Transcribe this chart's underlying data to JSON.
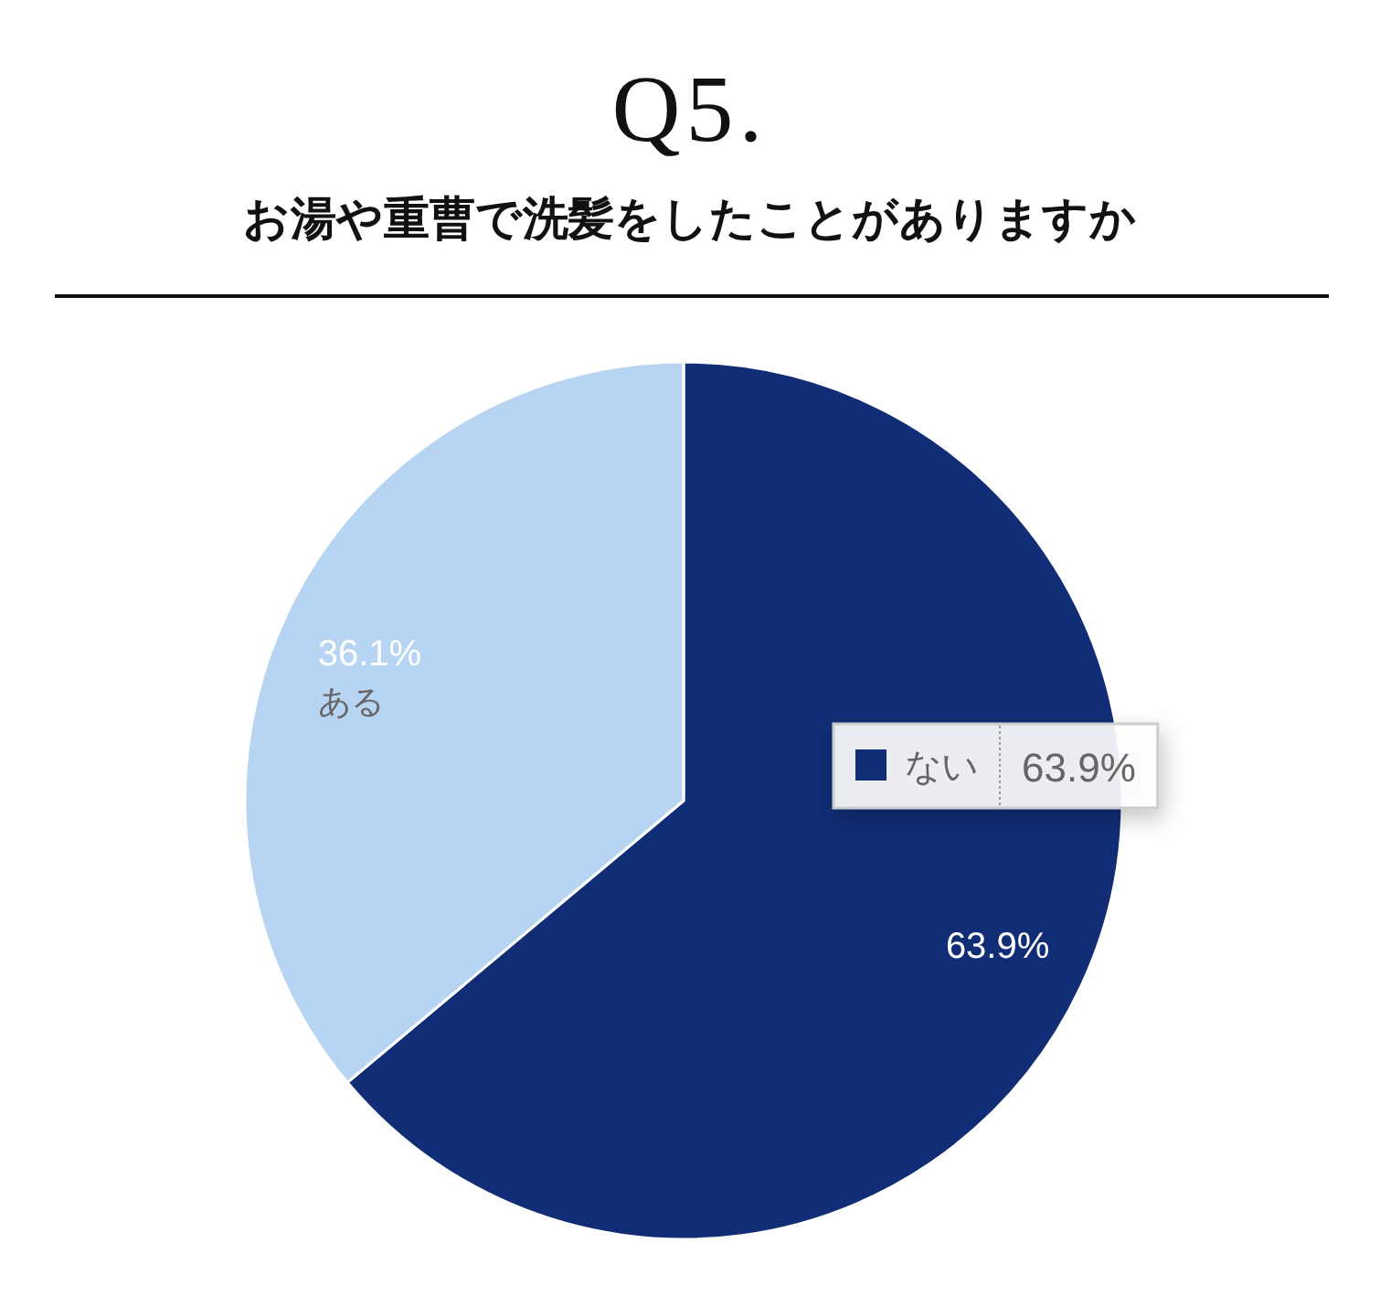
{
  "chart_data": {
    "type": "pie",
    "title": "Q5.",
    "subtitle": "お湯や重曹で洗髪をしたことがありますか",
    "categories": [
      "ない",
      "ある"
    ],
    "values": [
      63.9,
      36.1
    ],
    "colors": [
      "#112d75",
      "#b8d4f3"
    ],
    "value_labels": [
      "63.9%",
      "36.1%"
    ],
    "annotations": [
      {
        "text": "63.9%",
        "x": "ない"
      }
    ]
  }
}
